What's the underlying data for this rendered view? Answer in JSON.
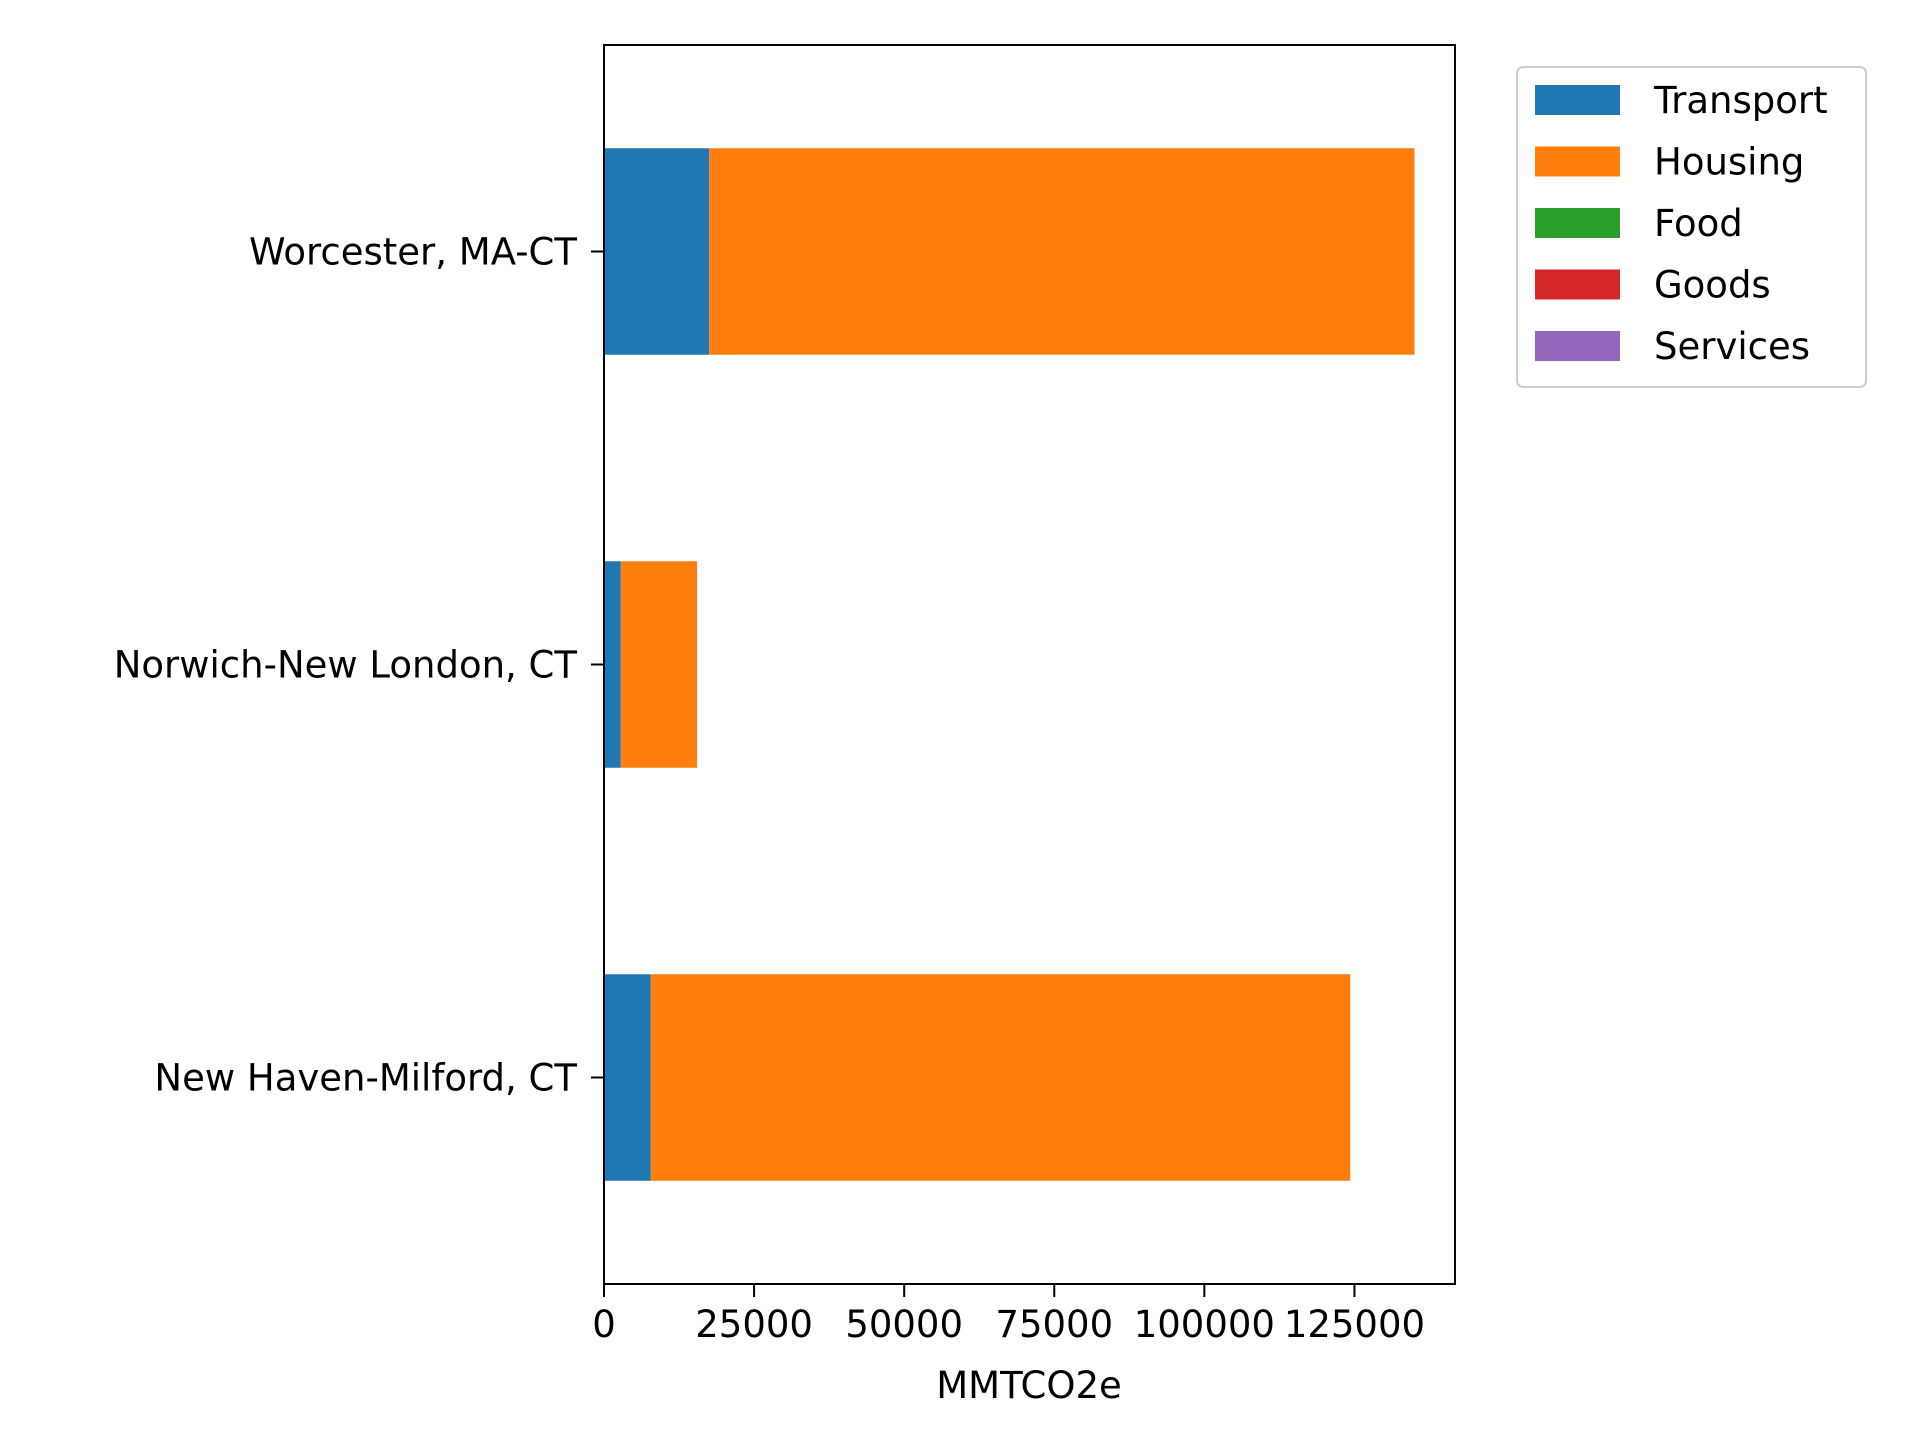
{
  "chart_data": {
    "type": "bar",
    "orientation": "horizontal",
    "stacked": true,
    "categories": [
      "Worcester, MA-CT",
      "Norwich-New London, CT",
      "New Haven-Milford, CT"
    ],
    "series": [
      {
        "name": "Transport",
        "color": "#1f77b4",
        "values": [
          17500,
          2800,
          7800
        ]
      },
      {
        "name": "Housing",
        "color": "#ff7f0e",
        "values": [
          117500,
          12700,
          116500
        ]
      },
      {
        "name": "Food",
        "color": "#2ca02c",
        "values": [
          0,
          0,
          0
        ]
      },
      {
        "name": "Goods",
        "color": "#d62728",
        "values": [
          0,
          0,
          0
        ]
      },
      {
        "name": "Services",
        "color": "#9467bd",
        "values": [
          0,
          0,
          0
        ]
      }
    ],
    "xlabel": "MMTCO2e",
    "ylabel": "",
    "title": "",
    "xlim": [
      0,
      141750
    ],
    "xticks": [
      0,
      25000,
      50000,
      75000,
      100000,
      125000
    ],
    "xtick_labels": [
      "0",
      "25000",
      "50000",
      "75000",
      "100000",
      "125000"
    ],
    "grid": false,
    "legend_position": "outside upper right"
  }
}
